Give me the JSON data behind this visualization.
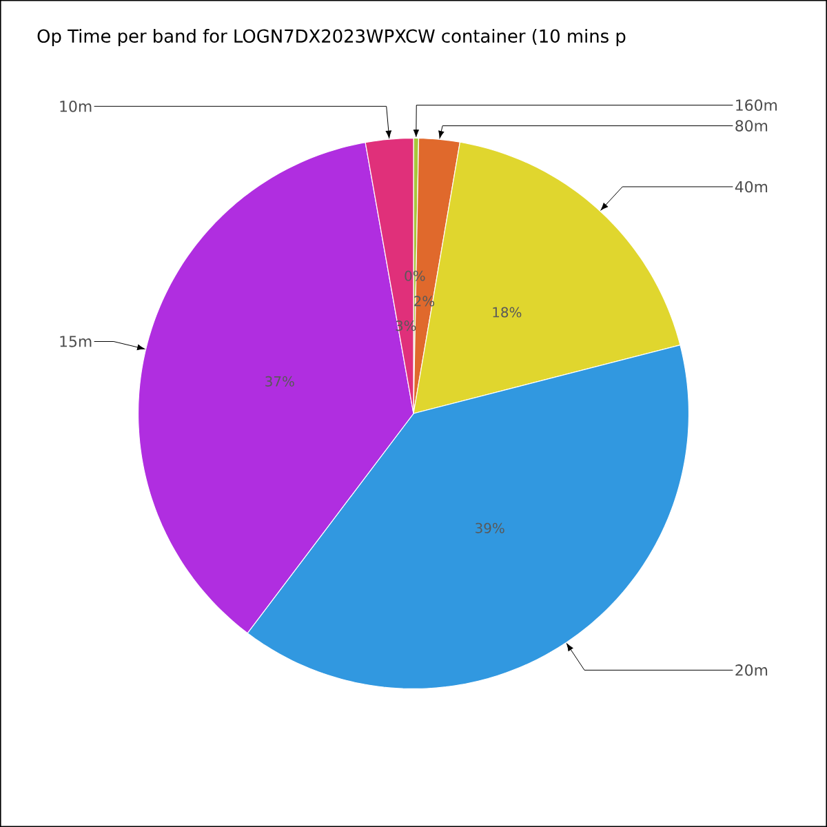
{
  "chart_data": {
    "type": "pie",
    "title": "Op Time per band for LOGN7DX2023WPXCW container (10 mins p",
    "categories": [
      "160m",
      "80m",
      "40m",
      "20m",
      "15m",
      "10m"
    ],
    "values": [
      0.3,
      2.4,
      18.3,
      39.3,
      36.9,
      2.8
    ],
    "colors": [
      "#a8c83a",
      "#e0692c",
      "#e0d62e",
      "#3198e0",
      "#b02ee0",
      "#e0307a"
    ],
    "value_labels": [
      "0%",
      "2%",
      "18%",
      "39%",
      "37%",
      "3%"
    ]
  }
}
